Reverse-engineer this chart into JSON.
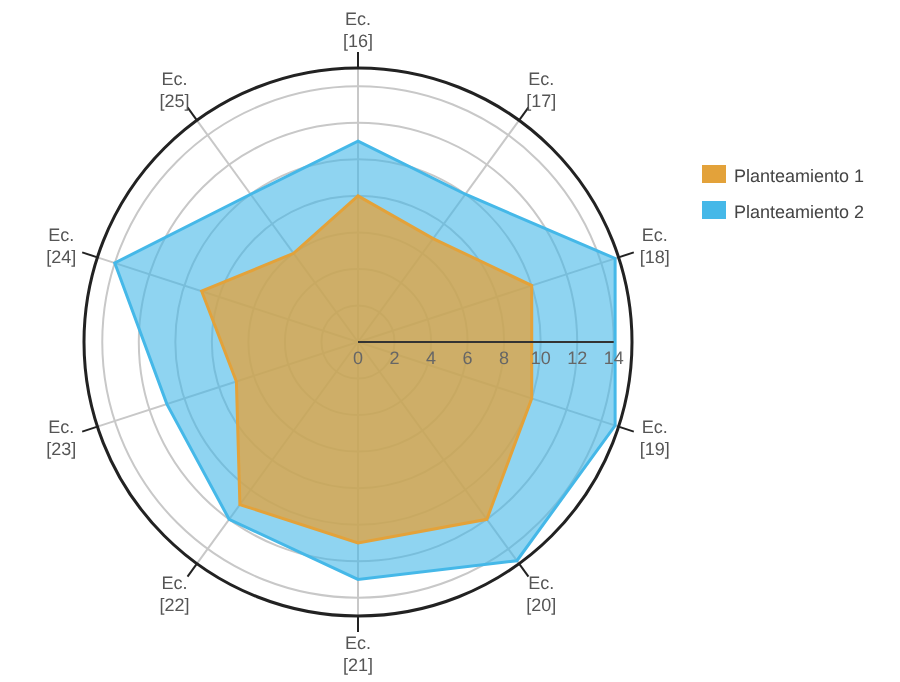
{
  "chart_data": {
    "type": "radar",
    "categories": [
      "Ec. [16]",
      "Ec. [17]",
      "Ec. [18]",
      "Ec. [19]",
      "Ec. [20]",
      "Ec. [21]",
      "Ec. [22]",
      "Ec. [23]",
      "Ec. [24]",
      "Ec. [25]"
    ],
    "series": [
      {
        "name": "Planteamiento 1",
        "color": "#e3a23a",
        "values": [
          8,
          7,
          10,
          10,
          12,
          11,
          11,
          7,
          9,
          6
        ]
      },
      {
        "name": "Planteamiento 2",
        "color": "#45b8e8",
        "values": [
          11,
          10,
          14.8,
          14.8,
          14.8,
          13,
          12,
          11,
          14,
          10
        ]
      }
    ],
    "ylim": [
      0,
      15
    ],
    "yticks": [
      0,
      2,
      4,
      6,
      8,
      10,
      12,
      14
    ],
    "grid": true,
    "legend": "right"
  }
}
